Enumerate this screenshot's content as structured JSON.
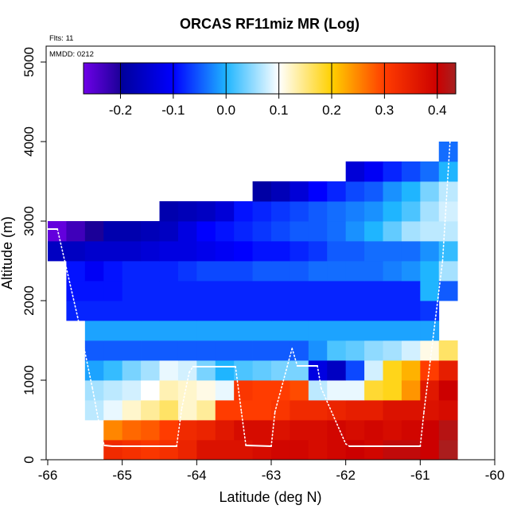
{
  "chart_data": {
    "type": "heatmap",
    "title": "ORCAS RF11miz MR (Log)",
    "annotations": {
      "flights": "Flts: 11",
      "date": "MMDD: 0212"
    },
    "xlabel": "Latitude (deg N)",
    "ylabel": "Altitude (m)",
    "xlim": [
      -66,
      -60
    ],
    "ylim": [
      0,
      5200
    ],
    "x_ticks": [
      -66,
      -65,
      -64,
      -63,
      -62,
      -61,
      -60
    ],
    "x_tick_labels": [
      "-66",
      "-65",
      "-64",
      "-63",
      "-62",
      "-61",
      "-60"
    ],
    "y_ticks": [
      0,
      1000,
      2000,
      3000,
      4000,
      5000
    ],
    "y_tick_labels": [
      "0",
      "1000",
      "2000",
      "3000",
      "4000",
      "5000"
    ],
    "grid": false,
    "cell_width_deg": 0.25,
    "cell_height_m": 250,
    "colorbar": {
      "range": [
        -0.27,
        0.435
      ],
      "ticks": [
        -0.2,
        -0.1,
        0.0,
        0.1,
        0.2,
        0.3,
        0.4
      ],
      "tick_labels": [
        "-0.2",
        "-0.1",
        "0.0",
        "0.1",
        "0.2",
        "0.3",
        "0.4"
      ],
      "segment_boundaries": [
        -0.27,
        -0.2,
        -0.1,
        0.0,
        0.1,
        0.2,
        0.3,
        0.4,
        0.435
      ],
      "segment_colors": [
        [
          "#6f00e8",
          "#1b0098"
        ],
        [
          "#00009a",
          "#0000ff"
        ],
        [
          "#0000ff",
          "#1fb5ff"
        ],
        [
          "#1fb5ff",
          "#ffffff"
        ],
        [
          "#ffffff",
          "#ffd000"
        ],
        [
          "#ffd000",
          "#ff3c00"
        ],
        [
          "#ff3c00",
          "#cc0000"
        ],
        [
          "#cc0000",
          "#a52222"
        ]
      ]
    },
    "columns_x_start": [
      -66.0,
      -65.75,
      -65.5,
      -65.25,
      -65.0,
      -64.75,
      -64.5,
      -64.25,
      -64.0,
      -63.75,
      -63.5,
      -63.25,
      -63.0,
      -62.75,
      -62.5,
      -62.25,
      -62.0,
      -61.75,
      -61.5,
      -61.25,
      -61.0,
      -60.75
    ],
    "rows_y_start": [
      0,
      250,
      500,
      750,
      1000,
      1250,
      1500,
      1750,
      2000,
      2250,
      2500,
      2750,
      3000,
      3250,
      3500,
      3750
    ],
    "values": [
      [
        null,
        null,
        null,
        0.33,
        0.32,
        0.31,
        0.32,
        0.34,
        0.37,
        0.37,
        0.37,
        0.38,
        0.39,
        0.39,
        0.38,
        0.39,
        0.4,
        0.39,
        0.41,
        0.41,
        0.4,
        0.43
      ],
      [
        null,
        null,
        null,
        0.25,
        0.27,
        0.28,
        0.3,
        0.33,
        0.34,
        0.36,
        0.38,
        0.38,
        0.37,
        0.38,
        0.38,
        0.39,
        0.38,
        0.39,
        0.38,
        0.39,
        0.4,
        0.42
      ],
      [
        null,
        null,
        0.07,
        0.09,
        0.12,
        0.14,
        0.16,
        0.12,
        0.14,
        0.3,
        0.3,
        0.3,
        0.31,
        0.33,
        0.33,
        0.34,
        0.35,
        0.35,
        0.37,
        0.37,
        0.37,
        0.38
      ],
      [
        null,
        null,
        0.06,
        0.07,
        0.08,
        0.1,
        0.13,
        0.12,
        0.11,
        0.09,
        0.31,
        0.3,
        0.3,
        0.29,
        0.07,
        0.09,
        0.09,
        0.18,
        0.19,
        0.24,
        0.36,
        0.4
      ],
      [
        null,
        null,
        -0.01,
        0.01,
        0.04,
        0.06,
        0.09,
        0.08,
        0.04,
        0.0,
        0.02,
        0.03,
        0.04,
        0.04,
        -0.13,
        -0.16,
        -0.06,
        0.08,
        0.19,
        0.22,
        0.3,
        0.35
      ],
      [
        null,
        null,
        -0.05,
        -0.05,
        -0.05,
        -0.05,
        -0.05,
        -0.05,
        -0.05,
        -0.05,
        -0.05,
        -0.05,
        -0.05,
        -0.05,
        -0.02,
        0.02,
        0.03,
        0.05,
        0.06,
        0.08,
        0.11,
        0.16
      ],
      [
        null,
        null,
        -0.01,
        -0.01,
        -0.01,
        -0.01,
        -0.01,
        -0.01,
        -0.01,
        -0.01,
        -0.01,
        -0.01,
        -0.01,
        -0.01,
        -0.01,
        -0.01,
        -0.01,
        -0.01,
        -0.01,
        -0.01,
        -0.01,
        null
      ],
      [
        null,
        -0.08,
        -0.08,
        -0.08,
        -0.08,
        -0.08,
        -0.08,
        -0.08,
        -0.08,
        -0.08,
        -0.08,
        -0.08,
        -0.08,
        -0.08,
        -0.08,
        -0.08,
        -0.08,
        -0.08,
        -0.08,
        -0.08,
        -0.07,
        null
      ],
      [
        null,
        -0.09,
        -0.09,
        -0.09,
        -0.08,
        -0.08,
        -0.08,
        -0.08,
        -0.08,
        -0.08,
        -0.08,
        -0.08,
        -0.08,
        -0.08,
        -0.08,
        -0.08,
        -0.08,
        -0.08,
        -0.08,
        -0.08,
        0.0,
        -0.05
      ],
      [
        null,
        -0.09,
        -0.11,
        -0.09,
        -0.08,
        -0.08,
        -0.08,
        -0.07,
        -0.06,
        -0.06,
        -0.06,
        -0.05,
        -0.05,
        -0.05,
        -0.04,
        -0.04,
        -0.04,
        -0.04,
        -0.03,
        -0.02,
        0.0,
        0.06
      ],
      [
        -0.16,
        -0.16,
        -0.15,
        -0.15,
        -0.15,
        -0.14,
        -0.13,
        -0.13,
        -0.12,
        -0.11,
        -0.1,
        -0.09,
        -0.09,
        -0.08,
        -0.07,
        -0.05,
        -0.05,
        -0.04,
        -0.04,
        -0.04,
        -0.02,
        0.01
      ],
      [
        -0.26,
        -0.23,
        -0.2,
        -0.18,
        -0.18,
        -0.17,
        -0.16,
        -0.13,
        -0.1,
        -0.09,
        -0.08,
        -0.07,
        -0.06,
        -0.05,
        -0.05,
        -0.04,
        -0.02,
        0.0,
        0.03,
        0.06,
        0.07,
        0.07
      ],
      [
        null,
        null,
        null,
        null,
        null,
        null,
        -0.18,
        -0.17,
        -0.16,
        -0.14,
        -0.09,
        -0.08,
        -0.07,
        -0.06,
        -0.05,
        -0.04,
        -0.03,
        -0.02,
        0.0,
        0.02,
        0.06,
        0.08
      ],
      [
        null,
        null,
        null,
        null,
        null,
        null,
        null,
        null,
        null,
        null,
        null,
        -0.19,
        -0.17,
        -0.14,
        -0.1,
        -0.08,
        -0.06,
        -0.05,
        -0.02,
        0.0,
        0.04,
        0.07
      ],
      [
        null,
        null,
        null,
        null,
        null,
        null,
        null,
        null,
        null,
        null,
        null,
        null,
        null,
        null,
        null,
        null,
        -0.14,
        -0.11,
        -0.08,
        -0.06,
        -0.04,
        0.0
      ],
      [
        null,
        null,
        null,
        null,
        null,
        null,
        null,
        null,
        null,
        null,
        null,
        null,
        null,
        null,
        null,
        null,
        null,
        null,
        null,
        null,
        null,
        -0.04
      ]
    ],
    "flight_track": {
      "lat": [
        -66.0,
        -65.87,
        -65.6,
        -65.4,
        -65.28,
        -65.24,
        -65.13,
        -64.27,
        -64.2,
        -64.1,
        -64.05,
        -63.48,
        -63.4,
        -63.34,
        -63.0,
        -62.95,
        -62.72,
        -62.65,
        -62.38,
        -62.33,
        -62.0,
        -61.95,
        -61.0,
        -60.95,
        -60.7,
        -60.6
      ],
      "alt": [
        2900,
        2900,
        1800,
        900,
        300,
        180,
        170,
        170,
        650,
        1100,
        1170,
        1170,
        600,
        180,
        170,
        600,
        1400,
        1180,
        1180,
        900,
        200,
        170,
        170,
        600,
        2500,
        4000
      ]
    }
  }
}
